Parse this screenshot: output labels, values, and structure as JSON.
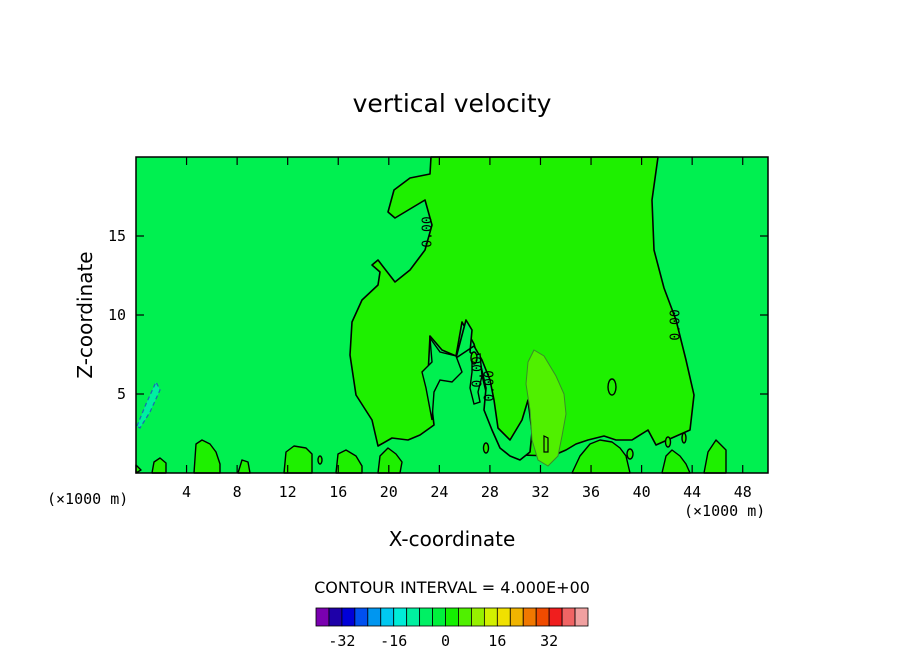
{
  "chart_data": {
    "type": "contour",
    "title": "vertical velocity",
    "xlabel": "X-coordinate",
    "ylabel": "Z-coordinate",
    "x_unit": "(×1000 m)",
    "xlim": [
      0,
      50
    ],
    "ylim": [
      0,
      20
    ],
    "x_ticks": [
      4,
      8,
      12,
      16,
      20,
      24,
      28,
      32,
      36,
      40,
      44,
      48
    ],
    "y_ticks": [
      5,
      10,
      15
    ],
    "contour_interval_text": "CONTOUR INTERVAL = 4.000E+00",
    "contour_labels": [
      "0.00",
      "0.00",
      "0.00",
      "0.00"
    ],
    "colorbar": {
      "colors": [
        "#7a00b0",
        "#1e00a8",
        "#0000d8",
        "#0050f0",
        "#0096f0",
        "#00c8f0",
        "#00ecd8",
        "#00f0a0",
        "#00f064",
        "#00f03c",
        "#14f000",
        "#50f000",
        "#96f000",
        "#d2f000",
        "#f0e100",
        "#f0b400",
        "#f07800",
        "#f04b00",
        "#f01e1e",
        "#f06464",
        "#f0a0a0"
      ],
      "tick_labels": [
        "-32",
        "-16",
        "0",
        "16",
        "32"
      ],
      "tick_values": [
        -32,
        -16,
        0,
        16,
        32
      ]
    },
    "background_color": "#00f050",
    "positive_region_color": "#1ef000",
    "strong_region_color": "#50f000",
    "negative_region_color": "#00f0a0"
  }
}
